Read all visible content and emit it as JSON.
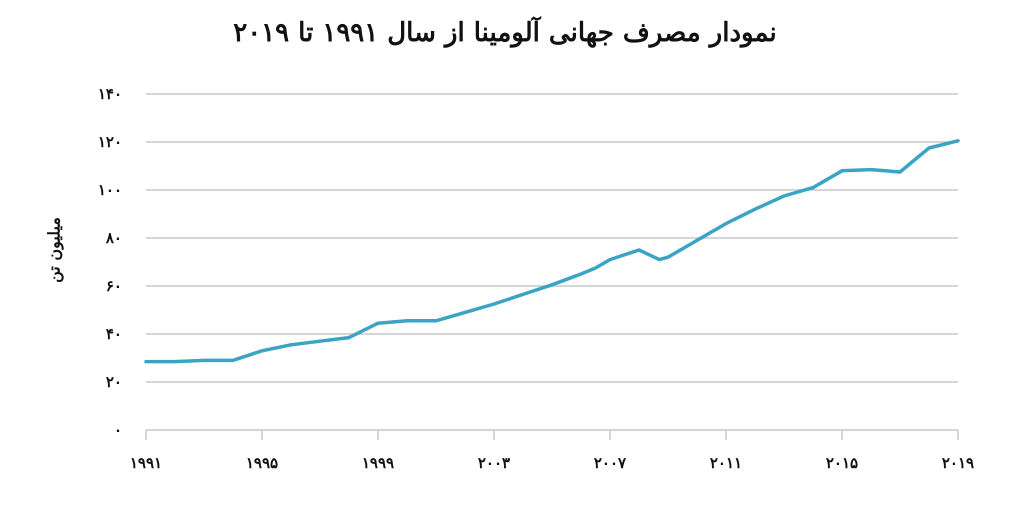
{
  "chart_data": {
    "type": "line",
    "title": "نمودار مصرف جهانی آلومینا از سال ۱۹۹۱ تا ۲۰۱۹",
    "ylabel": "میلیون تن",
    "xlabel": "",
    "xlim": [
      1991,
      2019
    ],
    "ylim": [
      0,
      140
    ],
    "yticks": [
      0,
      20,
      40,
      60,
      80,
      100,
      120,
      140
    ],
    "ytick_labels": [
      "۰",
      "۲۰",
      "۴۰",
      "۶۰",
      "۸۰",
      "۱۰۰",
      "۱۲۰",
      "۱۴۰"
    ],
    "xticks": [
      1991,
      1995,
      1999,
      2003,
      2007,
      2011,
      2015,
      2019
    ],
    "xtick_labels": [
      "۱۹۹۱",
      "۱۹۹۵",
      "۱۹۹۹",
      "۲۰۰۳",
      "۲۰۰۷",
      "۲۰۱۱",
      "۲۰۱۵",
      "۲۰۱۹"
    ],
    "grid": true,
    "line_color": "#3ba3c4",
    "series": [
      {
        "x": [
          1991,
          1992,
          1993,
          1994,
          1995,
          1996,
          1997,
          1998,
          1999,
          2000,
          2001,
          2002,
          2003,
          2004,
          2005,
          2006,
          2006.5,
          2007,
          2008,
          2008.7,
          2009,
          2010,
          2011,
          2012,
          2013,
          2014,
          2015,
          2016,
          2017,
          2018,
          2019
        ],
        "y": [
          28.5,
          28.5,
          29,
          29,
          33,
          35.5,
          37,
          38.5,
          44.5,
          45.5,
          45.5,
          49,
          52.5,
          56.5,
          60.5,
          65,
          67.5,
          71,
          75,
          71,
          72,
          79,
          86,
          92,
          97.5,
          101,
          108,
          108.5,
          107.5,
          117.5,
          120.5
        ]
      }
    ]
  }
}
